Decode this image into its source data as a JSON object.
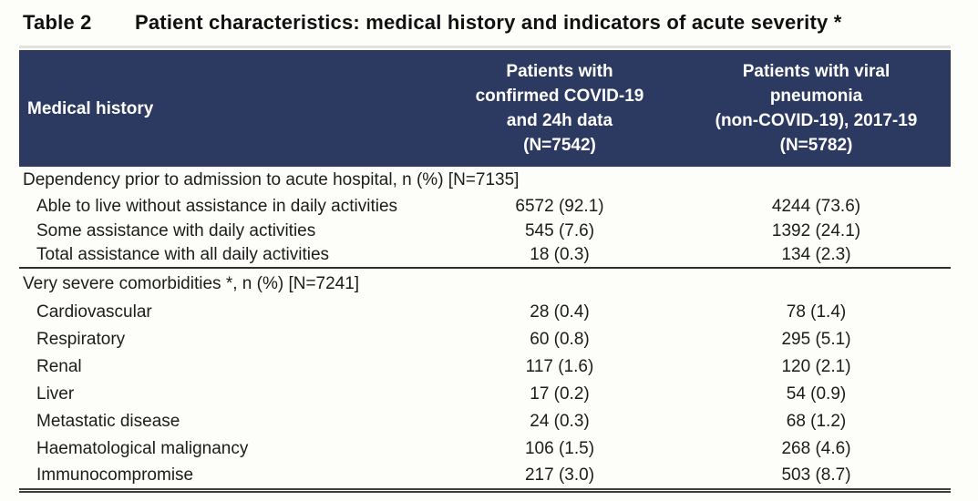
{
  "title": {
    "label": "Table 2",
    "text": "Patient characteristics: medical history and indicators of acute severity *"
  },
  "colors": {
    "header_bg": "#2c3a62",
    "header_text": "#ffffff",
    "body_text": "#1c1c1c"
  },
  "table": {
    "header": {
      "col1": "Medical history",
      "col2": {
        "lines": [
          "Patients with",
          "confirmed COVID-19",
          "and 24h data",
          "(N=7542)"
        ]
      },
      "col3": {
        "lines": [
          "Patients with viral",
          "pneumonia",
          "(non-COVID-19), 2017-19",
          "(N=5782)"
        ]
      }
    },
    "sections": [
      {
        "header": "Dependency prior to admission to acute hospital, n (%) [N=7135]",
        "rows": [
          {
            "label": "Able to live without assistance in daily activities",
            "covid": "6572 (92.1)",
            "pneumonia": "4244 (73.6)"
          },
          {
            "label": "Some assistance with daily activities",
            "covid": "545 (7.6)",
            "pneumonia": "1392 (24.1)"
          },
          {
            "label": "Total assistance with all daily activities",
            "covid": "18 (0.3)",
            "pneumonia": "134 (2.3)"
          }
        ]
      },
      {
        "header": "Very severe comorbidities *, n (%) [N=7241]",
        "rows": [
          {
            "label": "Cardiovascular",
            "covid": "28 (0.4)",
            "pneumonia": "78 (1.4)"
          },
          {
            "label": "Respiratory",
            "covid": "60 (0.8)",
            "pneumonia": "295 (5.1)"
          },
          {
            "label": "Renal",
            "covid": "117 (1.6)",
            "pneumonia": "120 (2.1)"
          },
          {
            "label": "Liver",
            "covid": "17 (0.2)",
            "pneumonia": "54 (0.9)"
          },
          {
            "label": "Metastatic disease",
            "covid": "24 (0.3)",
            "pneumonia": "68 (1.2)"
          },
          {
            "label": "Haematological malignancy",
            "covid": "106 (1.5)",
            "pneumonia": "268 (4.6)"
          },
          {
            "label": "Immunocompromise",
            "covid": "217 (3.0)",
            "pneumonia": "503 (8.7)"
          }
        ]
      }
    ]
  }
}
